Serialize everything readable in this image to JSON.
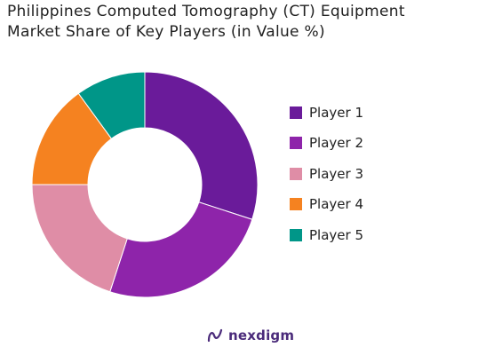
{
  "title_line1": "Philippines Computed Tomography (CT) Equipment",
  "title_line2": "Market Share of Key Players (in Value %)",
  "brand": "nexdigm",
  "chart_data": {
    "type": "pie",
    "donut": true,
    "title": "Philippines Computed Tomography (CT) Equipment Market Share of Key Players (in Value %)",
    "legend_position": "right",
    "series": [
      {
        "name": "Player 1",
        "value": 30,
        "color": "#6a1b9a"
      },
      {
        "name": "Player 2",
        "value": 25,
        "color": "#8e24aa"
      },
      {
        "name": "Player 3",
        "value": 20,
        "color": "#df8da6"
      },
      {
        "name": "Player 4",
        "value": 15,
        "color": "#f58220"
      },
      {
        "name": "Player 5",
        "value": 10,
        "color": "#009688"
      }
    ]
  }
}
